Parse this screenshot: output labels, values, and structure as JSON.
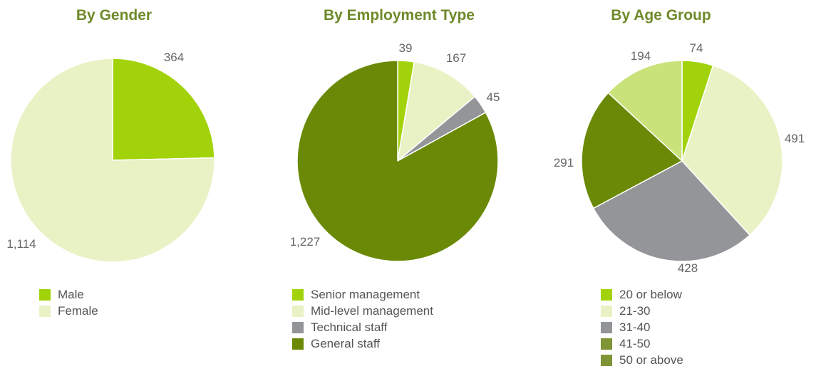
{
  "chart_data": [
    {
      "type": "pie",
      "title": "By Gender",
      "slices": [
        {
          "name": "Male",
          "value": 364,
          "label": "364",
          "color": "#a2d30a"
        },
        {
          "name": "Female",
          "value": 1114,
          "label": "1,114",
          "color": "#e9f2c5"
        }
      ],
      "legend_position": "bottom"
    },
    {
      "type": "pie",
      "title": "By Employment Type",
      "slices": [
        {
          "name": "Senior management",
          "value": 39,
          "label": "39",
          "color": "#a2d30a"
        },
        {
          "name": "Mid-level management",
          "value": 167,
          "label": "167",
          "color": "#e9f2c5"
        },
        {
          "name": "Technical staff",
          "value": 45,
          "label": "45",
          "color": "#939598"
        },
        {
          "name": "General staff",
          "value": 1227,
          "label": "1,227",
          "color": "#6a8a07"
        }
      ],
      "legend_position": "bottom"
    },
    {
      "type": "pie",
      "title": "By Age Group",
      "slices": [
        {
          "name": "20 or below",
          "value": 74,
          "label": "74",
          "color": "#a2d30a"
        },
        {
          "name": "21-30",
          "value": 491,
          "label": "491",
          "color": "#e9f2c5"
        },
        {
          "name": "31-40",
          "value": 428,
          "label": "428",
          "color": "#939598"
        },
        {
          "name": "41-50",
          "value": 291,
          "label": "291",
          "color": "#6a8a07"
        },
        {
          "name": "50 or above",
          "value": 194,
          "label": "194",
          "color": "#c9e27a"
        }
      ],
      "legend_colors": [
        "#a2d30a",
        "#e9f2c5",
        "#939598",
        "#7f9535",
        "#7f9535"
      ],
      "legend_position": "bottom"
    }
  ]
}
